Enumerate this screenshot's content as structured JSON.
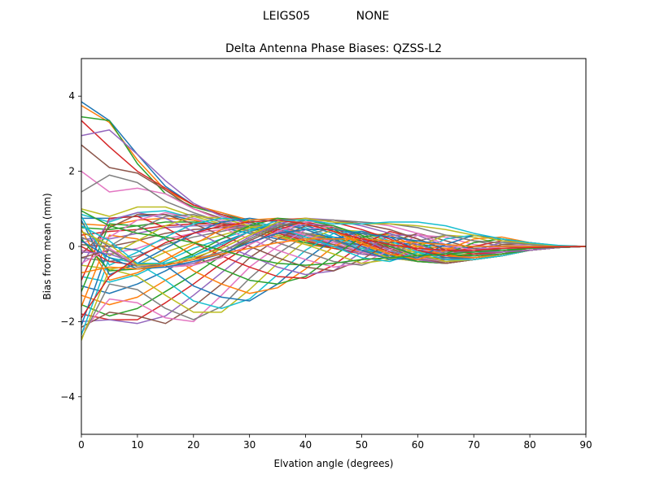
{
  "figure": {
    "suptitle_left": "LEIGS05",
    "suptitle_right": "NONE"
  },
  "chart_data": {
    "type": "line",
    "title": "Delta Antenna Phase Biases: QZSS-L2",
    "xlabel": "Elvation angle (degrees)",
    "ylabel": "Bias from mean (mm)",
    "xlim": [
      0,
      90
    ],
    "ylim": [
      -5,
      5
    ],
    "x_ticks": [
      0,
      10,
      20,
      30,
      40,
      50,
      60,
      70,
      80,
      90
    ],
    "y_ticks": [
      -4,
      -2,
      0,
      2,
      4
    ],
    "grid": false,
    "legend": "none",
    "x": [
      0,
      5,
      10,
      15,
      20,
      25,
      30,
      35,
      40,
      45,
      50,
      55,
      60,
      65,
      70,
      75,
      80,
      85,
      90
    ],
    "palette": [
      "#1f77b4",
      "#ff7f0e",
      "#2ca02c",
      "#d62728",
      "#9467bd",
      "#8c564b",
      "#e377c2",
      "#7f7f7f",
      "#bcbd22",
      "#17becf"
    ],
    "series": [
      {
        "values": [
          3.85,
          3.35,
          2.45,
          1.6,
          1.1,
          0.9,
          0.65,
          0.45,
          0.35,
          0.25,
          0.15,
          0.1,
          0.05,
          0.0,
          -0.05,
          -0.05,
          -0.05,
          -0.02,
          0.0
        ]
      },
      {
        "values": [
          3.75,
          3.3,
          2.3,
          1.5,
          1.1,
          0.9,
          0.7,
          0.5,
          0.35,
          0.2,
          0.1,
          0.05,
          0.0,
          -0.05,
          -0.1,
          -0.1,
          -0.05,
          -0.02,
          0.0
        ]
      },
      {
        "values": [
          3.45,
          3.35,
          2.2,
          1.4,
          1.05,
          0.85,
          0.65,
          0.45,
          0.3,
          0.2,
          0.1,
          0.0,
          -0.05,
          -0.1,
          -0.1,
          -0.05,
          -0.05,
          -0.02,
          0.0
        ]
      },
      {
        "values": [
          3.35,
          2.65,
          2.0,
          1.55,
          1.1,
          0.85,
          0.6,
          0.4,
          0.3,
          0.15,
          0.05,
          0.0,
          -0.05,
          -0.1,
          -0.1,
          -0.05,
          -0.05,
          -0.02,
          0.0
        ]
      },
      {
        "values": [
          2.95,
          3.1,
          2.45,
          1.75,
          1.15,
          0.8,
          0.6,
          0.45,
          0.3,
          0.15,
          0.05,
          -0.05,
          -0.1,
          -0.1,
          -0.1,
          -0.05,
          -0.05,
          -0.02,
          0.0
        ]
      },
      {
        "values": [
          2.7,
          2.1,
          1.95,
          1.5,
          1.0,
          0.75,
          0.55,
          0.4,
          0.25,
          0.1,
          0.05,
          -0.05,
          -0.1,
          -0.15,
          -0.1,
          -0.05,
          -0.05,
          -0.02,
          0.0
        ]
      },
      {
        "values": [
          2.0,
          1.45,
          1.55,
          1.4,
          1.0,
          0.7,
          0.5,
          0.35,
          0.2,
          0.1,
          0.0,
          -0.05,
          -0.1,
          -0.15,
          -0.1,
          -0.1,
          -0.05,
          -0.02,
          0.0
        ]
      },
      {
        "values": [
          1.45,
          1.9,
          1.7,
          1.2,
          0.9,
          0.65,
          0.5,
          0.35,
          0.2,
          0.05,
          -0.05,
          -0.1,
          -0.15,
          -0.15,
          -0.1,
          -0.1,
          -0.05,
          -0.02,
          0.0
        ]
      },
      {
        "values": [
          1.0,
          0.8,
          1.05,
          1.05,
          0.8,
          0.6,
          0.45,
          0.3,
          0.15,
          0.05,
          -0.05,
          -0.1,
          -0.15,
          -0.2,
          -0.15,
          -0.1,
          -0.05,
          -0.02,
          0.0
        ]
      },
      {
        "values": [
          0.85,
          0.65,
          0.9,
          0.95,
          0.75,
          0.55,
          0.4,
          0.25,
          0.1,
          0.0,
          -0.1,
          -0.15,
          -0.2,
          -0.2,
          -0.15,
          -0.1,
          -0.05,
          -0.02,
          0.0
        ]
      },
      {
        "values": [
          0.75,
          0.75,
          0.8,
          0.85,
          0.7,
          0.5,
          0.35,
          0.2,
          0.1,
          0.0,
          -0.1,
          -0.2,
          -0.25,
          -0.25,
          -0.2,
          -0.1,
          -0.05,
          -0.02,
          0.0
        ]
      },
      {
        "values": [
          0.6,
          0.55,
          0.7,
          0.75,
          0.7,
          0.55,
          0.4,
          0.25,
          0.05,
          -0.05,
          -0.15,
          -0.2,
          -0.25,
          -0.25,
          -0.2,
          -0.15,
          -0.05,
          -0.02,
          0.0
        ]
      },
      {
        "values": [
          0.5,
          0.45,
          0.55,
          0.65,
          0.65,
          0.6,
          0.5,
          0.3,
          0.1,
          -0.05,
          -0.2,
          -0.25,
          -0.3,
          -0.3,
          -0.2,
          -0.15,
          -0.05,
          -0.02,
          0.0
        ]
      },
      {
        "values": [
          0.3,
          0.4,
          0.45,
          0.55,
          0.6,
          0.6,
          0.55,
          0.35,
          0.15,
          -0.05,
          -0.2,
          -0.3,
          -0.35,
          -0.3,
          -0.25,
          -0.15,
          -0.1,
          -0.03,
          0.0
        ]
      },
      {
        "values": [
          0.2,
          0.2,
          0.35,
          0.5,
          0.55,
          0.55,
          0.55,
          0.4,
          0.2,
          0.0,
          -0.2,
          -0.3,
          -0.35,
          -0.35,
          -0.25,
          -0.15,
          -0.1,
          -0.03,
          0.0
        ]
      },
      {
        "values": [
          0.05,
          0.0,
          0.15,
          0.35,
          0.45,
          0.5,
          0.55,
          0.45,
          0.25,
          0.05,
          -0.15,
          -0.3,
          -0.35,
          -0.35,
          -0.3,
          -0.2,
          -0.1,
          -0.03,
          0.0
        ]
      },
      {
        "values": [
          -0.1,
          -0.2,
          -0.05,
          0.2,
          0.35,
          0.45,
          0.55,
          0.5,
          0.3,
          0.1,
          -0.15,
          -0.3,
          -0.4,
          -0.4,
          -0.3,
          -0.2,
          -0.1,
          -0.03,
          0.0
        ]
      },
      {
        "values": [
          -0.3,
          -0.4,
          -0.25,
          0.05,
          0.25,
          0.4,
          0.55,
          0.55,
          0.35,
          0.15,
          -0.1,
          -0.3,
          -0.4,
          -0.4,
          -0.3,
          -0.2,
          -0.1,
          -0.03,
          0.0
        ]
      },
      {
        "values": [
          -0.5,
          -0.6,
          -0.5,
          -0.15,
          0.1,
          0.3,
          0.5,
          0.6,
          0.45,
          0.2,
          -0.1,
          -0.3,
          -0.4,
          -0.4,
          -0.35,
          -0.2,
          -0.1,
          -0.03,
          0.0
        ]
      },
      {
        "values": [
          -0.8,
          -0.95,
          -0.75,
          -0.4,
          -0.05,
          0.2,
          0.45,
          0.6,
          0.5,
          0.25,
          -0.05,
          -0.25,
          -0.4,
          -0.45,
          -0.35,
          -0.25,
          -0.1,
          -0.03,
          0.0
        ]
      },
      {
        "values": [
          -1.05,
          -1.25,
          -1.0,
          -0.65,
          -0.25,
          0.1,
          0.4,
          0.6,
          0.55,
          0.35,
          0.0,
          -0.25,
          -0.4,
          -0.45,
          -0.35,
          -0.25,
          -0.1,
          -0.03,
          0.0
        ]
      },
      {
        "values": [
          -1.3,
          -1.55,
          -1.35,
          -0.9,
          -0.5,
          -0.05,
          0.3,
          0.6,
          0.6,
          0.4,
          0.05,
          -0.2,
          -0.4,
          -0.45,
          -0.35,
          -0.25,
          -0.1,
          -0.03,
          0.0
        ]
      },
      {
        "values": [
          -1.55,
          -1.85,
          -1.65,
          -1.2,
          -0.75,
          -0.25,
          0.2,
          0.55,
          0.65,
          0.45,
          0.1,
          -0.2,
          -0.4,
          -0.45,
          -0.35,
          -0.25,
          -0.1,
          -0.03,
          0.0
        ]
      },
      {
        "values": [
          -1.8,
          -1.95,
          -1.95,
          -1.5,
          -1.0,
          -0.45,
          0.05,
          0.45,
          0.65,
          0.5,
          0.15,
          -0.15,
          -0.35,
          -0.45,
          -0.35,
          -0.25,
          -0.1,
          -0.03,
          0.0
        ]
      },
      {
        "values": [
          -2.0,
          -1.95,
          -2.05,
          -1.85,
          -1.3,
          -0.7,
          -0.1,
          0.35,
          0.6,
          0.55,
          0.2,
          -0.1,
          -0.35,
          -0.45,
          -0.35,
          -0.25,
          -0.1,
          -0.03,
          0.0
        ]
      },
      {
        "values": [
          -2.15,
          -1.75,
          -1.85,
          -2.05,
          -1.6,
          -1.0,
          -0.3,
          0.2,
          0.55,
          0.55,
          0.25,
          -0.05,
          -0.3,
          -0.45,
          -0.35,
          -0.25,
          -0.1,
          -0.03,
          0.0
        ]
      },
      {
        "values": [
          -2.3,
          -1.4,
          -1.5,
          -1.9,
          -2.0,
          -1.3,
          -0.55,
          0.0,
          0.45,
          0.55,
          0.3,
          0.0,
          -0.3,
          -0.4,
          -0.35,
          -0.25,
          -0.1,
          -0.03,
          0.0
        ]
      },
      {
        "values": [
          -2.45,
          -1.0,
          -1.15,
          -1.65,
          -1.95,
          -1.6,
          -0.85,
          -0.2,
          0.3,
          0.5,
          0.35,
          0.05,
          -0.25,
          -0.4,
          -0.35,
          -0.25,
          -0.1,
          -0.03,
          0.0
        ]
      },
      {
        "values": [
          -2.5,
          -0.6,
          -0.8,
          -1.3,
          -1.75,
          -1.75,
          -1.15,
          -0.45,
          0.15,
          0.45,
          0.4,
          0.1,
          -0.2,
          -0.4,
          -0.35,
          -0.25,
          -0.1,
          -0.03,
          0.0
        ]
      },
      {
        "values": [
          -2.35,
          -0.3,
          -0.45,
          -0.9,
          -1.45,
          -1.65,
          -1.4,
          -0.75,
          -0.1,
          0.35,
          0.4,
          0.15,
          -0.15,
          -0.35,
          -0.35,
          -0.25,
          -0.1,
          -0.03,
          0.0
        ]
      },
      {
        "values": [
          -2.1,
          0.0,
          -0.1,
          -0.5,
          -1.05,
          -1.35,
          -1.45,
          -1.0,
          -0.35,
          0.2,
          0.4,
          0.25,
          -0.1,
          -0.3,
          -0.3,
          -0.2,
          -0.1,
          -0.03,
          0.0
        ]
      },
      {
        "values": [
          -1.6,
          0.3,
          0.2,
          -0.15,
          -0.65,
          -1.0,
          -1.25,
          -1.1,
          -0.6,
          0.0,
          0.35,
          0.3,
          0.0,
          -0.25,
          -0.3,
          -0.2,
          -0.1,
          -0.03,
          0.0
        ]
      },
      {
        "values": [
          -1.2,
          0.6,
          0.55,
          0.2,
          -0.25,
          -0.6,
          -0.9,
          -1.0,
          -0.8,
          -0.25,
          0.25,
          0.35,
          0.1,
          -0.2,
          -0.25,
          -0.2,
          -0.1,
          -0.03,
          0.0
        ]
      },
      {
        "values": [
          -0.9,
          0.75,
          0.8,
          0.5,
          0.1,
          -0.25,
          -0.55,
          -0.8,
          -0.85,
          -0.5,
          0.05,
          0.4,
          0.2,
          -0.1,
          -0.2,
          -0.15,
          -0.1,
          -0.03,
          0.0
        ]
      },
      {
        "values": [
          -0.5,
          0.7,
          0.9,
          0.75,
          0.4,
          0.05,
          -0.25,
          -0.55,
          -0.75,
          -0.65,
          -0.15,
          0.3,
          0.3,
          0.0,
          -0.15,
          -0.15,
          -0.1,
          -0.03,
          0.0
        ]
      },
      {
        "values": [
          -0.2,
          0.5,
          0.85,
          0.85,
          0.6,
          0.3,
          0.0,
          -0.3,
          -0.55,
          -0.65,
          -0.35,
          0.1,
          0.35,
          0.15,
          -0.05,
          -0.1,
          -0.05,
          -0.02,
          0.0
        ]
      },
      {
        "values": [
          0.1,
          0.25,
          0.7,
          0.9,
          0.75,
          0.5,
          0.2,
          -0.1,
          -0.35,
          -0.55,
          -0.45,
          -0.1,
          0.3,
          0.25,
          0.05,
          -0.05,
          -0.05,
          -0.02,
          0.0
        ]
      },
      {
        "values": [
          0.4,
          0.0,
          0.45,
          0.8,
          0.85,
          0.65,
          0.4,
          0.1,
          -0.15,
          -0.4,
          -0.5,
          -0.25,
          0.15,
          0.3,
          0.15,
          0.0,
          -0.05,
          -0.02,
          0.0
        ]
      },
      {
        "values": [
          0.65,
          -0.25,
          0.15,
          0.55,
          0.8,
          0.75,
          0.55,
          0.3,
          0.05,
          -0.2,
          -0.45,
          -0.35,
          0.0,
          0.3,
          0.25,
          0.05,
          0.0,
          -0.01,
          0.0
        ]
      },
      {
        "values": [
          0.8,
          -0.5,
          -0.15,
          0.25,
          0.6,
          0.75,
          0.7,
          0.5,
          0.25,
          0.0,
          -0.3,
          -0.4,
          -0.15,
          0.2,
          0.3,
          0.15,
          0.05,
          0.01,
          0.0
        ]
      },
      {
        "values": [
          0.7,
          -0.75,
          -0.45,
          -0.05,
          0.35,
          0.65,
          0.75,
          0.65,
          0.45,
          0.2,
          -0.1,
          -0.35,
          -0.3,
          0.05,
          0.3,
          0.2,
          0.05,
          0.01,
          0.0
        ]
      },
      {
        "values": [
          0.45,
          -0.9,
          -0.7,
          -0.35,
          0.05,
          0.45,
          0.7,
          0.75,
          0.6,
          0.4,
          0.1,
          -0.2,
          -0.35,
          -0.1,
          0.2,
          0.25,
          0.1,
          0.02,
          0.0
        ]
      },
      {
        "values": [
          0.2,
          -0.65,
          -0.6,
          -0.5,
          -0.2,
          0.2,
          0.55,
          0.75,
          0.7,
          0.55,
          0.3,
          0.0,
          -0.25,
          -0.2,
          0.1,
          0.2,
          0.1,
          0.02,
          0.0
        ]
      },
      {
        "values": [
          0.0,
          -0.4,
          -0.5,
          -0.5,
          -0.35,
          0.0,
          0.4,
          0.7,
          0.75,
          0.65,
          0.45,
          0.2,
          -0.1,
          -0.25,
          0.0,
          0.15,
          0.1,
          0.02,
          0.0
        ]
      },
      {
        "values": [
          -0.15,
          -0.2,
          -0.45,
          -0.55,
          -0.45,
          -0.15,
          0.25,
          0.6,
          0.75,
          0.7,
          0.55,
          0.35,
          0.05,
          -0.2,
          -0.1,
          0.1,
          0.1,
          0.02,
          0.0
        ]
      },
      {
        "values": [
          -0.3,
          -0.1,
          -0.45,
          -0.55,
          -0.5,
          -0.25,
          0.15,
          0.5,
          0.7,
          0.7,
          0.6,
          0.45,
          0.2,
          -0.1,
          -0.15,
          0.05,
          0.08,
          0.02,
          0.0
        ]
      },
      {
        "values": [
          -0.45,
          -0.05,
          -0.5,
          -0.55,
          -0.5,
          -0.3,
          0.05,
          0.4,
          0.65,
          0.7,
          0.65,
          0.55,
          0.35,
          0.05,
          -0.1,
          0.0,
          0.05,
          0.02,
          0.0
        ]
      },
      {
        "values": [
          0.25,
          -0.1,
          -0.55,
          -0.5,
          -0.35,
          -0.15,
          0.2,
          0.55,
          0.7,
          0.7,
          0.65,
          0.6,
          0.5,
          0.3,
          0.15,
          0.1,
          0.05,
          0.02,
          0.0
        ]
      },
      {
        "values": [
          0.4,
          0.05,
          -0.5,
          -0.45,
          -0.3,
          -0.05,
          0.3,
          0.65,
          0.75,
          0.65,
          0.6,
          0.6,
          0.55,
          0.45,
          0.3,
          0.15,
          0.08,
          0.02,
          0.0
        ]
      },
      {
        "values": [
          0.55,
          0.15,
          -0.45,
          -0.45,
          -0.25,
          0.05,
          0.4,
          0.7,
          0.7,
          0.6,
          0.6,
          0.65,
          0.65,
          0.55,
          0.35,
          0.2,
          0.1,
          0.03,
          0.0
        ]
      },
      {
        "values": [
          0.15,
          -0.3,
          -0.6,
          -0.55,
          -0.4,
          -0.2,
          0.1,
          0.35,
          0.45,
          0.45,
          0.35,
          0.25,
          0.15,
          0.05,
          0.0,
          0.0,
          0.0,
          0.0,
          0.0
        ]
      },
      {
        "values": [
          -0.7,
          -0.55,
          -0.6,
          -0.5,
          -0.35,
          -0.2,
          -0.05,
          0.1,
          0.2,
          0.2,
          0.2,
          0.15,
          0.1,
          0.05,
          0.0,
          0.0,
          0.0,
          0.0,
          0.0
        ]
      },
      {
        "values": [
          0.95,
          0.55,
          0.35,
          0.25,
          0.1,
          -0.1,
          -0.3,
          -0.45,
          -0.5,
          -0.45,
          -0.35,
          -0.3,
          -0.25,
          -0.2,
          -0.15,
          -0.1,
          -0.05,
          -0.02,
          0.0
        ]
      },
      {
        "values": [
          -1.9,
          -0.8,
          -0.3,
          0.1,
          0.35,
          0.55,
          0.65,
          0.7,
          0.6,
          0.4,
          0.2,
          0.05,
          -0.05,
          -0.1,
          -0.1,
          -0.05,
          -0.03,
          -0.01,
          0.0
        ]
      }
    ]
  }
}
